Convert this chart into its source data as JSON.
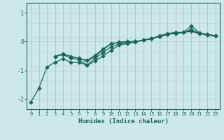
{
  "xlabel": "Humidex (Indice chaleur)",
  "ylabel": "",
  "background_color": "#cde8e8",
  "grid_color_minor": "#b8d8d0",
  "grid_color_red": "#d4b0b0",
  "line_color": "#1a6655",
  "xlim": [
    -0.5,
    23.5
  ],
  "ylim": [
    -2.35,
    1.35
  ],
  "xticks": [
    0,
    1,
    2,
    3,
    4,
    5,
    6,
    7,
    8,
    9,
    10,
    11,
    12,
    13,
    14,
    15,
    16,
    17,
    18,
    19,
    20,
    21,
    22,
    23
  ],
  "yticks": [
    -2,
    -1,
    0,
    1
  ],
  "lines": [
    {
      "x": [
        0,
        1,
        2,
        3,
        4,
        5,
        6,
        7,
        8,
        9,
        10,
        11,
        12,
        13,
        14,
        15,
        16,
        17,
        18,
        19,
        20,
        21,
        22,
        23
      ],
      "y": [
        -2.1,
        -1.62,
        -0.88,
        -0.72,
        -0.6,
        -0.72,
        -0.72,
        -0.82,
        -0.68,
        -0.5,
        -0.3,
        -0.12,
        -0.07,
        -0.02,
        0.05,
        0.1,
        0.2,
        0.28,
        0.32,
        0.32,
        0.42,
        0.28,
        0.22,
        0.2
      ],
      "marker": "D",
      "markersize": 2.5
    },
    {
      "x": [
        3,
        4,
        5,
        6,
        7,
        8,
        9,
        10,
        11,
        12,
        13,
        14,
        15,
        16,
        17,
        18,
        19,
        20,
        21,
        22,
        23
      ],
      "y": [
        -0.52,
        -0.45,
        -0.58,
        -0.62,
        -0.82,
        -0.58,
        -0.38,
        -0.18,
        -0.08,
        -0.03,
        0.0,
        0.05,
        0.1,
        0.18,
        0.26,
        0.28,
        0.32,
        0.38,
        0.3,
        0.25,
        0.2
      ],
      "marker": "D",
      "markersize": 2.5
    },
    {
      "x": [
        3,
        4,
        5,
        6,
        7,
        8,
        9,
        10,
        11,
        12,
        13,
        14,
        15,
        16,
        17,
        18,
        19,
        20,
        21,
        22,
        23
      ],
      "y": [
        -0.52,
        -0.42,
        -0.52,
        -0.58,
        -0.68,
        -0.52,
        -0.28,
        -0.08,
        -0.03,
        0.0,
        0.0,
        0.05,
        0.1,
        0.18,
        0.25,
        0.3,
        0.32,
        0.35,
        0.28,
        0.25,
        0.2
      ],
      "marker": "+",
      "markersize": 4
    },
    {
      "x": [
        3,
        4,
        5,
        6,
        7,
        8,
        9,
        10,
        11,
        12,
        13,
        14,
        15,
        16,
        17,
        18,
        19,
        20,
        21,
        22,
        23
      ],
      "y": [
        -0.52,
        -0.42,
        -0.52,
        -0.58,
        -0.65,
        -0.48,
        -0.25,
        -0.07,
        -0.02,
        0.0,
        0.0,
        0.05,
        0.1,
        0.18,
        0.25,
        0.3,
        0.32,
        0.55,
        0.3,
        0.25,
        0.2
      ],
      "marker": "D",
      "markersize": 2.5
    }
  ]
}
